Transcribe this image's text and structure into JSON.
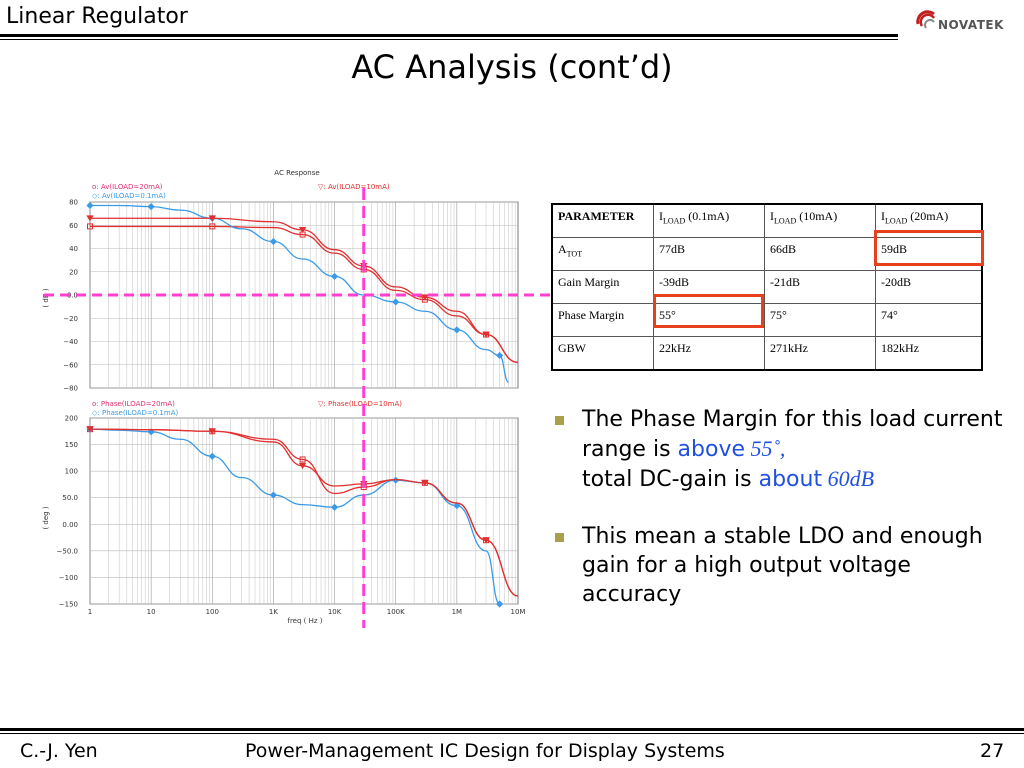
{
  "header": {
    "section_title": "Linear Regulator",
    "logo_text": "NOVATEK",
    "slide_title": "AC Analysis (cont’d)"
  },
  "colors": {
    "red": "#e03030",
    "blue": "#3a9ae8",
    "pink_marker": "#ff3fd0",
    "highlight": "#e8401c",
    "bullet": "#a8a04a"
  },
  "chart_data": [
    {
      "type": "line",
      "title": "AC Response",
      "ylabel": "( dB )",
      "xscale": "log",
      "xlim": [
        1,
        10000000
      ],
      "ylim": [
        -80,
        80
      ],
      "yticks": [
        "80",
        "60",
        "40",
        "20",
        "0.0",
        "−20",
        "−40",
        "−60",
        "−80"
      ],
      "legend": [
        "o: Av(ILOAD=20mA)",
        "◇: Av(ILOAD=0.1mA)",
        "▽: Av(ILOAD=10mA)"
      ],
      "series": [
        {
          "name": "Av(ILOAD=20mA)",
          "color": "#e03030",
          "x": [
            1,
            10,
            100,
            1000,
            3000,
            10000,
            30000,
            100000,
            300000,
            1000000,
            3000000,
            10000000
          ],
          "y": [
            59,
            59,
            59,
            58,
            52,
            36,
            22,
            4,
            -4,
            -18,
            -34,
            -58
          ]
        },
        {
          "name": "Av(ILOAD=0.1mA)",
          "color": "#3a9ae8",
          "x": [
            1,
            3,
            10,
            30,
            100,
            300,
            1000,
            3000,
            10000,
            30000,
            100000,
            300000,
            1000000,
            3000000,
            5000000,
            7000000
          ],
          "y": [
            77,
            77,
            76,
            73,
            66,
            57,
            46,
            31,
            16,
            0,
            -6,
            -14,
            -30,
            -47,
            -52,
            -75
          ]
        },
        {
          "name": "Av(ILOAD=10mA)",
          "color": "#e03030",
          "x": [
            1,
            10,
            100,
            1000,
            3000,
            10000,
            30000,
            100000,
            300000,
            1000000,
            3000000,
            10000000
          ],
          "y": [
            66,
            66,
            66,
            63,
            56,
            39,
            25,
            7,
            -2,
            -14,
            -34,
            -58
          ]
        }
      ]
    },
    {
      "type": "line",
      "xlabel": "freq ( Hz )",
      "ylabel": "( deg )",
      "xscale": "log",
      "xlim": [
        1,
        10000000
      ],
      "ylim": [
        -150,
        200
      ],
      "xticks": [
        "1",
        "10",
        "100",
        "1K",
        "10K",
        "100K",
        "1M",
        "10M"
      ],
      "yticks": [
        "200",
        "150",
        "100",
        "50.0",
        "0.00",
        "−50.0",
        "−100",
        "−150"
      ],
      "legend": [
        "o: Phase(ILOAD=20mA)",
        "◇: Phase(ILOAD=0.1mA)",
        "▽: Phase(ILOAD=10mA)"
      ],
      "series": [
        {
          "name": "Phase(ILOAD=20mA)",
          "color": "#e03030",
          "x": [
            1,
            10,
            100,
            1000,
            3000,
            10000,
            30000,
            100000,
            300000,
            1000000,
            3000000,
            10000000
          ],
          "y": [
            179,
            178,
            175,
            160,
            122,
            58,
            70,
            84,
            78,
            40,
            -30,
            -135
          ]
        },
        {
          "name": "Phase(ILOAD=0.1mA)",
          "color": "#3a9ae8",
          "x": [
            1,
            3,
            10,
            30,
            100,
            300,
            1000,
            3000,
            10000,
            30000,
            100000,
            300000,
            1000000,
            3000000,
            5000000
          ],
          "y": [
            179,
            177,
            174,
            160,
            128,
            88,
            55,
            37,
            32,
            55,
            83,
            78,
            35,
            -50,
            -150
          ]
        },
        {
          "name": "Phase(ILOAD=10mA)",
          "color": "#e03030",
          "x": [
            1,
            10,
            100,
            1000,
            3000,
            10000,
            30000,
            100000,
            300000,
            1000000,
            3000000,
            10000000
          ],
          "y": [
            179,
            178,
            175,
            155,
            110,
            72,
            76,
            84,
            78,
            40,
            -30,
            -135
          ]
        }
      ]
    }
  ],
  "table": {
    "headers": [
      "PARAMETER",
      "(0.1mA)",
      "(10mA)",
      "(20mA)"
    ],
    "header_sym": "I",
    "header_sub": "LOAD",
    "rows": [
      {
        "label": "A",
        "label_sub": "TOT",
        "values": [
          "77dB",
          "66dB",
          "59dB"
        ]
      },
      {
        "label": "Gain Margin",
        "label_sub": "",
        "values": [
          "-39dB",
          "-21dB",
          "-20dB"
        ]
      },
      {
        "label": "Phase Margin",
        "label_sub": "",
        "values": [
          "55°",
          "75°",
          "74°"
        ]
      },
      {
        "label": "GBW",
        "label_sub": "",
        "values": [
          "22kHz",
          "271kHz",
          "182kHz"
        ]
      }
    ]
  },
  "bullets": [
    {
      "parts": [
        "The Phase Margin for this load current range is ",
        "above",
        " 55˚,",
        " total DC-gain is ",
        "about",
        " 60dB"
      ]
    },
    {
      "parts": [
        "This mean a stable LDO and enough gain for a high output voltage accuracy"
      ]
    }
  ],
  "footer": {
    "author": "C.-J. Yen",
    "course": "Power-Management IC Design for Display Systems",
    "page": "27"
  }
}
